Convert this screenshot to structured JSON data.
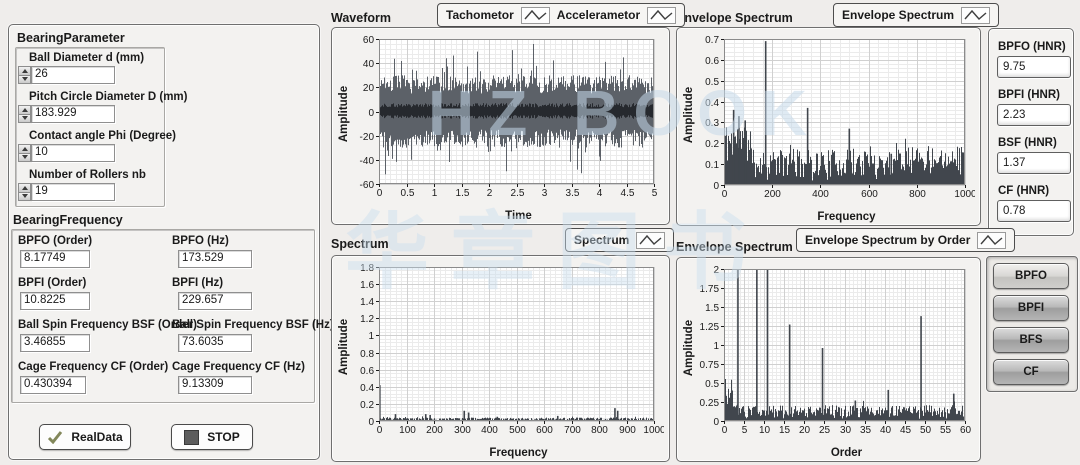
{
  "watermark": {
    "line1": "HZ BOOK",
    "line2": "华章图书"
  },
  "bearing_parameter": {
    "title": "BearingParameter",
    "fields": [
      {
        "label": "Ball Diameter d (mm)",
        "value": "26"
      },
      {
        "label": "Pitch Circle Diameter D (mm)",
        "value": "183.929"
      },
      {
        "label": "Contact angle Phi (Degree)",
        "value": "10"
      },
      {
        "label": "Number of Rollers nb",
        "value": "19"
      }
    ]
  },
  "bearing_frequency": {
    "title": "BearingFrequency",
    "fields": [
      {
        "label": "BPFO (Order)",
        "value": "8.17749"
      },
      {
        "label": "BPFO (Hz)",
        "value": "173.529"
      },
      {
        "label": "BPFI (Order)",
        "value": "10.8225"
      },
      {
        "label": "BPFI (Hz)",
        "value": "229.657"
      },
      {
        "label": "Ball Spin Frequency BSF (Order)",
        "value": "3.46855"
      },
      {
        "label": "Ball Spin Frequency BSF (Hz)",
        "value": "73.6035"
      },
      {
        "label": "Cage Frequency CF (Order)",
        "value": "0.430394"
      },
      {
        "label": "Cage Frequency CF (Hz)",
        "value": "9.13309"
      }
    ]
  },
  "controls": {
    "real_data_label": "RealData",
    "stop_label": "STOP"
  },
  "legends": {
    "waveform": [
      {
        "label": "Tachometor"
      },
      {
        "label": "Accelerametor"
      }
    ],
    "envelope": "Envelope Spectrum",
    "spectrum": "Spectrum",
    "envelope_order": "Envelope Spectrum by Order"
  },
  "hnr": {
    "items": [
      {
        "label": "BPFO (HNR)",
        "value": "9.75"
      },
      {
        "label": "BPFI (HNR)",
        "value": "2.23"
      },
      {
        "label": "BSF (HNR)",
        "value": "1.37"
      },
      {
        "label": "CF (HNR)",
        "value": "0.78"
      }
    ]
  },
  "fault_buttons": {
    "items": [
      "BPFO",
      "BPFI",
      "BFS",
      "CF"
    ]
  },
  "chart_data": [
    {
      "id": "waveform",
      "type": "line-noise",
      "title": "Waveform",
      "xlabel": "Time",
      "ylabel": "Amplitude",
      "xlim": [
        0,
        5
      ],
      "ylim": [
        -60,
        60
      ],
      "xtick": 0.5,
      "ytick": 20,
      "grid": true,
      "legend_position": "top",
      "series": [
        {
          "name": "Accelerametor",
          "kind": "noise-band",
          "amp_typ": 30,
          "amp_max": 58,
          "color": "#5c6168"
        },
        {
          "name": "Tachometor",
          "kind": "pulse-band",
          "band": [
            -6,
            7
          ],
          "color": "#26292e"
        }
      ],
      "seed": 7
    },
    {
      "id": "envelope-spectrum",
      "type": "spectrum",
      "title": "Envelope Spectrum",
      "xlabel": "Frequency",
      "ylabel": "Amplitude",
      "xlim": [
        0,
        1000
      ],
      "ylim": [
        0,
        0.7
      ],
      "xtick": 200,
      "ytick": 0.1,
      "grid": true,
      "legend_position": "top",
      "color": "#41464d",
      "baseline": {
        "min": 0.02,
        "max": 0.17
      },
      "regions": [
        {
          "x0": 0,
          "x1": 110,
          "min": 0.08,
          "max": 0.3
        },
        {
          "x0": 700,
          "x1": 1000,
          "min": 0.05,
          "max": 0.19
        }
      ],
      "peaks": [
        {
          "x": 40,
          "y": 0.36
        },
        {
          "x": 62,
          "y": 0.33
        },
        {
          "x": 88,
          "y": 0.31
        },
        {
          "x": 173,
          "y": 0.69
        },
        {
          "x": 347,
          "y": 0.37
        },
        {
          "x": 520,
          "y": 0.27
        },
        {
          "x": 694,
          "y": 0.15
        }
      ],
      "seed": 11
    },
    {
      "id": "spectrum",
      "type": "spectrum",
      "title": "Spectrum",
      "xlabel": "Frequency",
      "ylabel": "Amplitude",
      "xlim": [
        0,
        1000
      ],
      "ylim": [
        0,
        1.8
      ],
      "xtick": 100,
      "ytick": 0.2,
      "grid": true,
      "legend_position": "top",
      "color": "#3f444b",
      "baseline": {
        "min": 0.005,
        "max": 0.04
      },
      "regions": [],
      "peaks": [
        {
          "x": 3,
          "y": 0.42
        },
        {
          "x": 60,
          "y": 0.08
        },
        {
          "x": 170,
          "y": 0.08
        },
        {
          "x": 186,
          "y": 0.07
        },
        {
          "x": 310,
          "y": 0.12
        },
        {
          "x": 326,
          "y": 0.1
        },
        {
          "x": 430,
          "y": 0.05
        },
        {
          "x": 650,
          "y": 0.06
        },
        {
          "x": 858,
          "y": 0.15
        },
        {
          "x": 868,
          "y": 0.12
        }
      ],
      "seed": 23
    },
    {
      "id": "envelope-order",
      "type": "spectrum",
      "title": "Envelope Spectrum in order",
      "xlabel": "Order",
      "ylabel": "Amplitude",
      "xlim": [
        0,
        60
      ],
      "ylim": [
        0,
        2
      ],
      "xtick": 5,
      "ytick": 0.25,
      "grid": true,
      "legend_position": "top",
      "color": "#41464d",
      "baseline": {
        "min": 0.03,
        "max": 0.21
      },
      "regions": [
        {
          "x0": 0,
          "x1": 2,
          "min": 0.18,
          "max": 0.46
        }
      ],
      "peaks": [
        {
          "x": 3.47,
          "y": 2
        },
        {
          "x": 8.18,
          "y": 2
        },
        {
          "x": 10.82,
          "y": 2
        },
        {
          "x": 16.35,
          "y": 1.27
        },
        {
          "x": 24.53,
          "y": 0.96
        },
        {
          "x": 32.7,
          "y": 0.27
        },
        {
          "x": 40.9,
          "y": 0.41
        },
        {
          "x": 49.06,
          "y": 1.38
        },
        {
          "x": 57.2,
          "y": 0.36
        }
      ],
      "seed": 31
    }
  ]
}
